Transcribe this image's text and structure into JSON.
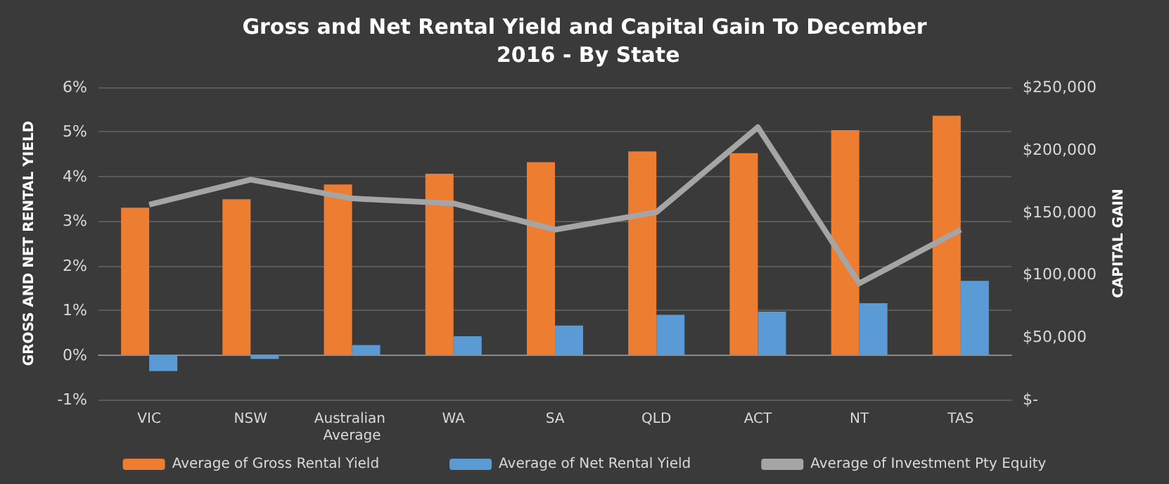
{
  "chart_data": {
    "type": "bar",
    "title": "Gross and Net Rental Yield and Capital Gain To December 2016 - By State",
    "ylabel": "GROSS AND NET RENTAL YIELD",
    "y2label": "CAPITAL GAIN",
    "categories": [
      "VIC",
      "NSW",
      "Australian Average",
      "WA",
      "SA",
      "QLD",
      "ACT",
      "NT",
      "TAS"
    ],
    "series": [
      {
        "name": "Average of Gross Rental Yield",
        "color": "#ed7d31",
        "values": [
          3.3,
          3.49,
          3.82,
          4.06,
          4.32,
          4.56,
          4.52,
          5.04,
          5.36
        ]
      },
      {
        "name": "Average of Net Rental Yield",
        "color": "#5b9bd5",
        "values": [
          -0.36,
          -0.09,
          0.22,
          0.42,
          0.66,
          0.9,
          0.97,
          1.16,
          1.66
        ]
      },
      {
        "name": "Average of Investment Pty Equity",
        "type": "line",
        "axis": "y2",
        "color": "#a5a5a5",
        "values": [
          156000,
          176000,
          161000,
          157000,
          136000,
          150000,
          218000,
          93000,
          136000
        ]
      }
    ],
    "ylim": [
      -1,
      6
    ],
    "yticks": [
      {
        "value": -1,
        "label": "-1%"
      },
      {
        "value": 0,
        "label": "0%"
      },
      {
        "value": 1,
        "label": "1%"
      },
      {
        "value": 2,
        "label": "2%"
      },
      {
        "value": 3,
        "label": "3%"
      },
      {
        "value": 4,
        "label": "4%"
      },
      {
        "value": 5,
        "label": "5%"
      },
      {
        "value": 6,
        "label": "6%"
      }
    ],
    "y2lim": [
      0,
      250000
    ],
    "y2ticks": [
      {
        "value": 0,
        "label": "$-"
      },
      {
        "value": 50000,
        "label": "$50,000"
      },
      {
        "value": 100000,
        "label": "$100,000"
      },
      {
        "value": 150000,
        "label": "$150,000"
      },
      {
        "value": 200000,
        "label": "$200,000"
      },
      {
        "value": 250000,
        "label": "$250,000"
      }
    ],
    "grid": "y",
    "legend": "bottom",
    "marker": "none"
  }
}
